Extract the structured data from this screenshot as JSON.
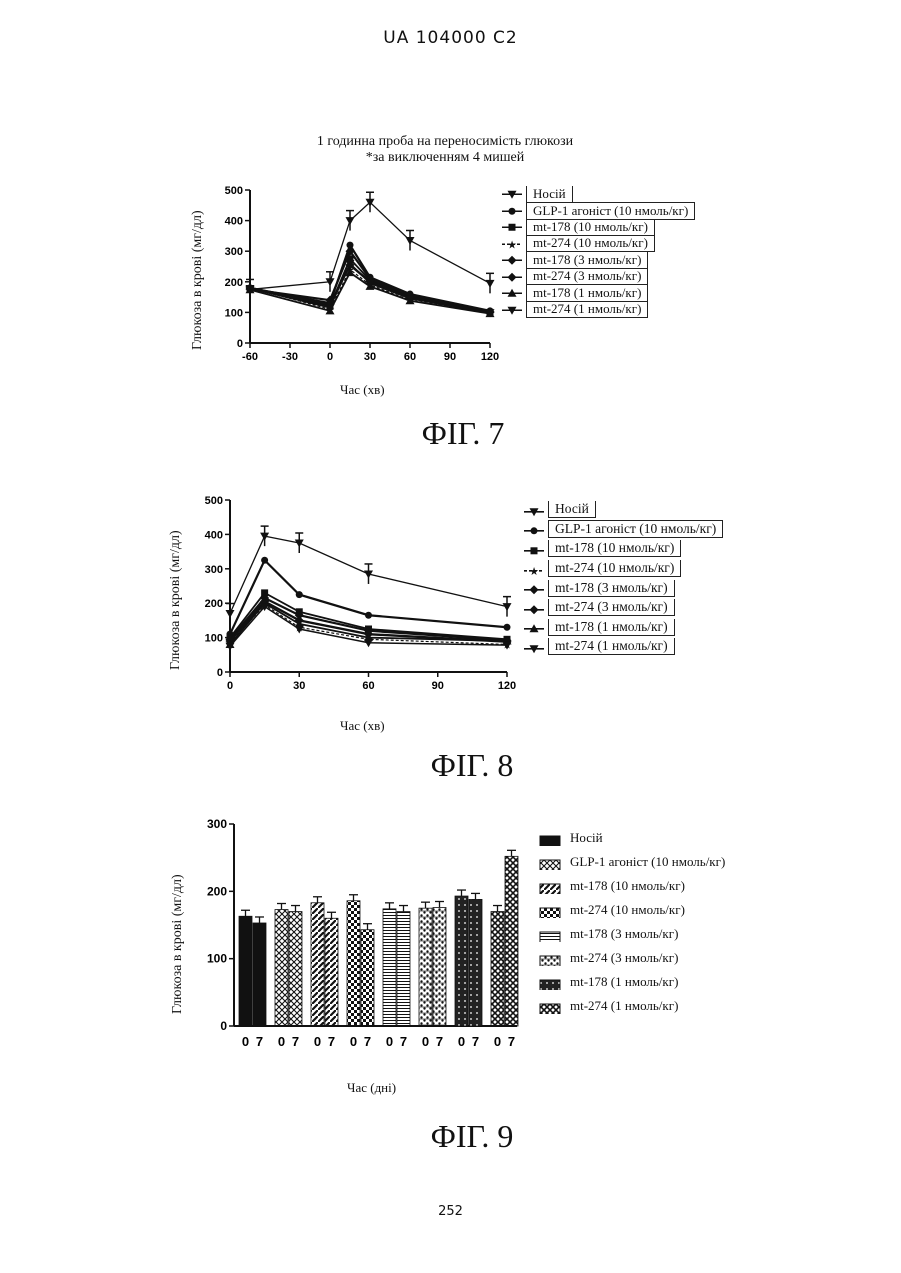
{
  "page": {
    "header": "UA   104000   C2",
    "page_number": "252"
  },
  "figures": [
    {
      "caption": "ФІГ. 7",
      "title_line1": "1 годинна проба на переносимість глюкози",
      "title_line2": "*за виключенням 4 мишей"
    },
    {
      "caption": "ФІГ. 8"
    },
    {
      "caption": "ФІГ. 9"
    }
  ],
  "legend_labels": [
    "Носій",
    "GLP-1 агоніст (10 нмоль/кг)",
    "mt-178 (10 нмоль/кг)",
    "mt-274 (10 нмоль/кг)",
    "mt-178 (3 нмоль/кг)",
    "mt-274 (3 нмоль/кг)",
    "mt-178 (1 нмоль/кг)",
    "mt-274 (1 нмоль/кг)"
  ],
  "chart_data": [
    {
      "type": "line",
      "title": "1 годинна проба на переносимість глюкози",
      "subtitle": "*за виключенням 4 мишей",
      "xlabel": "Час (хв)",
      "ylabel": "Глюкоза в крові (мг/дл)",
      "xlim": [
        -60,
        120
      ],
      "ylim": [
        0,
        500
      ],
      "xticks": [
        "-60",
        "-30",
        "0",
        "30",
        "60",
        "90",
        "120"
      ],
      "yticks": [
        "0",
        "100",
        "200",
        "300",
        "400",
        "500"
      ],
      "x": [
        -60,
        0,
        15,
        30,
        60,
        120
      ],
      "series": [
        {
          "name": "Носій",
          "x": [
            -60,
            0,
            15,
            30,
            60,
            120
          ],
          "values": [
            175,
            200,
            400,
            460,
            335,
            195
          ]
        },
        {
          "name": "GLP-1 агоніст (10 нмоль/кг)",
          "x": [
            -60,
            0,
            15,
            30,
            60,
            120
          ],
          "values": [
            180,
            130,
            320,
            215,
            160,
            105
          ]
        },
        {
          "name": "mt-178 (10 нмоль/кг)",
          "x": [
            -60,
            0,
            15,
            30,
            60,
            120
          ],
          "values": [
            178,
            120,
            275,
            205,
            150,
            100
          ]
        },
        {
          "name": "mt-274 (10 нмоль/кг)",
          "x": [
            -60,
            0,
            15,
            30,
            60,
            120
          ],
          "values": [
            182,
            110,
            240,
            190,
            140,
            98
          ]
        },
        {
          "name": "mt-178 (3 нмоль/кг)",
          "x": [
            -60,
            0,
            15,
            30,
            60,
            120
          ],
          "values": [
            176,
            140,
            300,
            210,
            155,
            102
          ]
        },
        {
          "name": "mt-274 (3 нмоль/кг)",
          "x": [
            -60,
            0,
            15,
            30,
            60,
            120
          ],
          "values": [
            180,
            125,
            255,
            200,
            148,
            100
          ]
        },
        {
          "name": "mt-178 (1 нмоль/кг)",
          "x": [
            -60,
            0,
            15,
            30,
            60,
            120
          ],
          "values": [
            174,
            105,
            230,
            185,
            138,
            96
          ]
        },
        {
          "name": "mt-274 (1 нмоль/кг)",
          "x": [
            -60,
            0,
            15,
            30,
            60,
            120
          ],
          "values": [
            178,
            115,
            260,
            195,
            145,
            99
          ]
        }
      ]
    },
    {
      "type": "line",
      "xlabel": "Час (хв)",
      "ylabel": "Глюкоза в крові (мг/дл)",
      "xlim": [
        0,
        120
      ],
      "ylim": [
        0,
        500
      ],
      "xticks": [
        "0",
        "30",
        "60",
        "90",
        "120"
      ],
      "yticks": [
        "0",
        "100",
        "200",
        "300",
        "400",
        "500"
      ],
      "series": [
        {
          "name": "Носій",
          "x": [
            0,
            15,
            30,
            60,
            120
          ],
          "values": [
            170,
            395,
            375,
            285,
            190
          ]
        },
        {
          "name": "GLP-1 агоніст (10 нмоль/кг)",
          "x": [
            0,
            15,
            30,
            60,
            120
          ],
          "values": [
            110,
            325,
            225,
            165,
            130
          ]
        },
        {
          "name": "mt-178 (10 нмоль/кг)",
          "x": [
            0,
            15,
            30,
            60,
            120
          ],
          "values": [
            100,
            230,
            175,
            125,
            95
          ]
        },
        {
          "name": "mt-274 (10 нмоль/кг)",
          "x": [
            0,
            15,
            30,
            60,
            120
          ],
          "values": [
            85,
            195,
            130,
            95,
            80
          ]
        },
        {
          "name": "mt-178 (3 нмоль/кг)",
          "x": [
            0,
            15,
            30,
            60,
            120
          ],
          "values": [
            95,
            215,
            165,
            120,
            92
          ]
        },
        {
          "name": "mt-274 (3 нмоль/кг)",
          "x": [
            0,
            15,
            30,
            60,
            120
          ],
          "values": [
            90,
            205,
            150,
            110,
            88
          ]
        },
        {
          "name": "mt-178 (1 нмоль/кг)",
          "x": [
            0,
            15,
            30,
            60,
            120
          ],
          "values": [
            80,
            200,
            140,
            100,
            90
          ]
        },
        {
          "name": "mt-274 (1 нмоль/кг)",
          "x": [
            0,
            15,
            30,
            60,
            120
          ],
          "values": [
            75,
            190,
            125,
            85,
            78
          ]
        }
      ]
    },
    {
      "type": "bar",
      "xlabel": "Час (дні)",
      "ylabel": "Глюкоза в крові (мг/дл)",
      "ylim": [
        0,
        300
      ],
      "yticks": [
        "0",
        "100",
        "200",
        "300"
      ],
      "categories": [
        "0",
        "7"
      ],
      "series": [
        {
          "name": "Носій",
          "values": [
            163,
            153
          ]
        },
        {
          "name": "GLP-1 агоніст (10 нмоль/кг)",
          "values": [
            173,
            170
          ]
        },
        {
          "name": "mt-178 (10 нмоль/кг)",
          "values": [
            183,
            160
          ]
        },
        {
          "name": "mt-274 (10 нмоль/кг)",
          "values": [
            186,
            143
          ]
        },
        {
          "name": "mt-178 (3 нмоль/кг)",
          "values": [
            174,
            170
          ]
        },
        {
          "name": "mt-274 (3 нмоль/кг)",
          "values": [
            175,
            176
          ]
        },
        {
          "name": "mt-178 (1 нмоль/кг)",
          "values": [
            193,
            188
          ]
        },
        {
          "name": "mt-274 (1 нмоль/кг)",
          "values": [
            170,
            252
          ]
        }
      ]
    }
  ]
}
